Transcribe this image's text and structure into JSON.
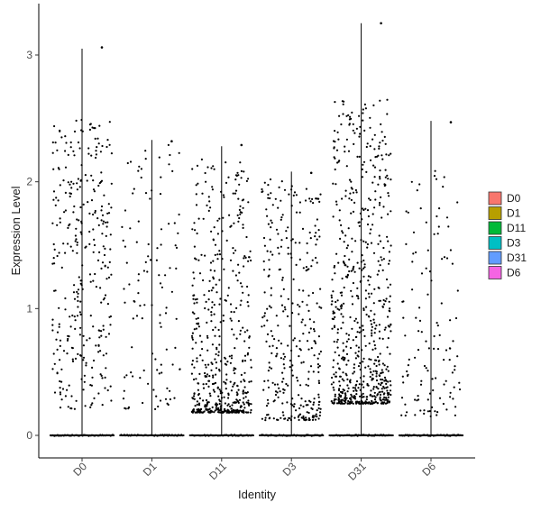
{
  "chart_data": {
    "type": "violin-jitter",
    "title": "",
    "xlabel": "Identity",
    "ylabel": "Expression Level",
    "ylim": [
      -0.18,
      3.38
    ],
    "yticks": [
      0,
      1,
      2,
      3
    ],
    "categories": [
      "D0",
      "D1",
      "D11",
      "D3",
      "D31",
      "D6"
    ],
    "legend": {
      "position": "right",
      "entries": [
        {
          "name": "D0",
          "color": "#F8766D"
        },
        {
          "name": "D1",
          "color": "#B79F00"
        },
        {
          "name": "D11",
          "color": "#00BA38"
        },
        {
          "name": "D3",
          "color": "#00BFC4"
        },
        {
          "name": "D31",
          "color": "#619CFF"
        },
        {
          "name": "D6",
          "color": "#F564E3"
        }
      ]
    },
    "groups": [
      {
        "name": "D0",
        "max": 3.05,
        "outlier": 3.06,
        "points": 320
      },
      {
        "name": "D1",
        "max": 2.33,
        "outlier": 2.32,
        "points": 110
      },
      {
        "name": "D11",
        "max": 2.28,
        "outlier": 2.29,
        "points": 520
      },
      {
        "name": "D3",
        "max": 2.08,
        "outlier": 2.07,
        "points": 330
      },
      {
        "name": "D31",
        "max": 3.25,
        "outlier": 3.25,
        "points": 680
      },
      {
        "name": "D6",
        "max": 2.48,
        "outlier": 2.47,
        "points": 120
      }
    ],
    "point_color": "#000000",
    "grid": false
  }
}
